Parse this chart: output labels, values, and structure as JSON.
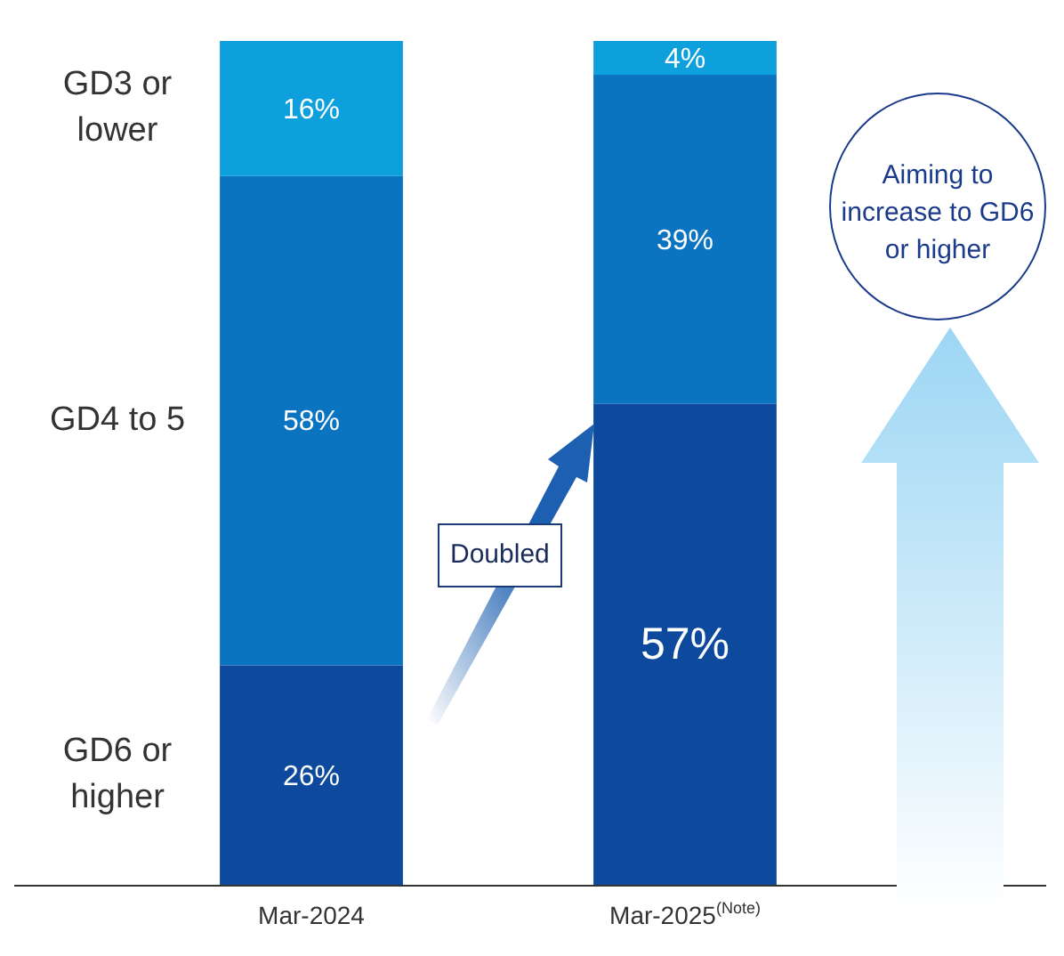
{
  "chart_data": {
    "type": "bar",
    "stacked": true,
    "categories": [
      "Mar-2024",
      "Mar-2025$^{(Note)}$"
    ],
    "series": [
      {
        "name": "GD6 or higher",
        "color": "#0d4a9e",
        "values": [
          26,
          57
        ],
        "value_labels": [
          "26%",
          "57%"
        ]
      },
      {
        "name": "GD4 to 5",
        "color": "#0a74c0",
        "values": [
          58,
          39
        ],
        "value_labels": [
          "58%",
          "39%"
        ]
      },
      {
        "name": "GD3 or lower",
        "color": "#0ea0dc",
        "values": [
          16,
          4
        ],
        "value_labels": [
          "16%",
          "4%"
        ]
      }
    ],
    "ylim": [
      0,
      100
    ],
    "tick_labels": "x",
    "grid": false,
    "legend": "left",
    "annotations": [
      "Doubled",
      "Aiming to increase to GD6 or higher"
    ]
  }
}
